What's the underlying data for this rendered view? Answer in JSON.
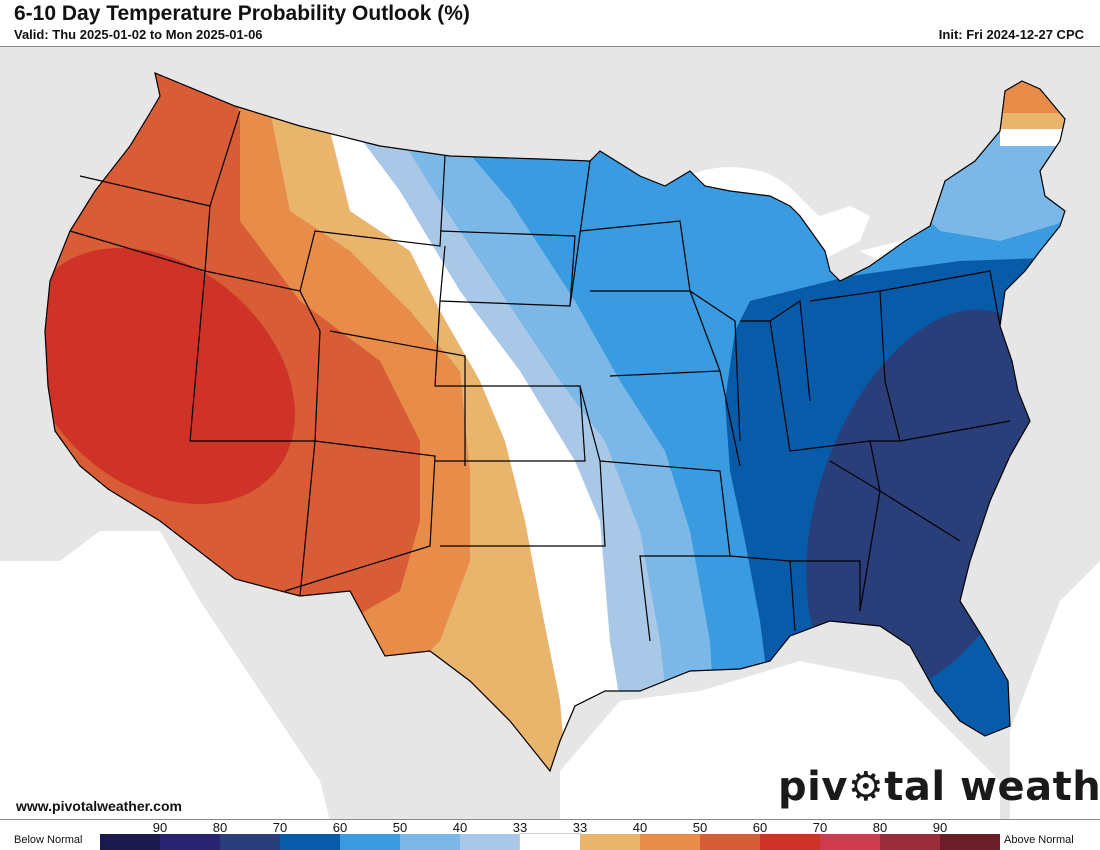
{
  "header": {
    "title": "6-10 Day Temperature Probability Outlook (%)",
    "valid": "Valid: Thu 2025-01-02 to Mon 2025-01-06",
    "init": "Init: Fri 2024-12-27 CPC"
  },
  "footer": {
    "website": "www.pivotalweather.com",
    "logo_left": "piv",
    "logo_right": "tal weather"
  },
  "legend": {
    "below_label": "Below Normal",
    "above_label": "Above Normal",
    "ticks": [
      "90",
      "80",
      "70",
      "60",
      "50",
      "40",
      "33",
      "33",
      "40",
      "50",
      "60",
      "70",
      "80",
      "90"
    ],
    "colors": [
      "#1c1a4c",
      "#2a2470",
      "#2a3f7a",
      "#075ba8",
      "#3a9be0",
      "#7bb8e8",
      "#a9c7e6",
      "#ffffff",
      "#e9b46c",
      "#e88c4a",
      "#d85c35",
      "#cf3328",
      "#d03a4e",
      "#9a2d3c",
      "#6a1e28"
    ]
  },
  "map": {
    "land_color": "#e6e6e6",
    "water_color": "#ffffff",
    "categories": {
      "above_40": "#e9b46c",
      "above_50": "#e88c4a",
      "above_60": "#d85c35",
      "above_70": "#cf3328",
      "near_33": "#ffffff",
      "below_40": "#a9c7e6",
      "below_50": "#7bb8e8",
      "below_60": "#3a9be0",
      "below_70": "#075ba8",
      "below_80": "#2a3f7a"
    }
  }
}
